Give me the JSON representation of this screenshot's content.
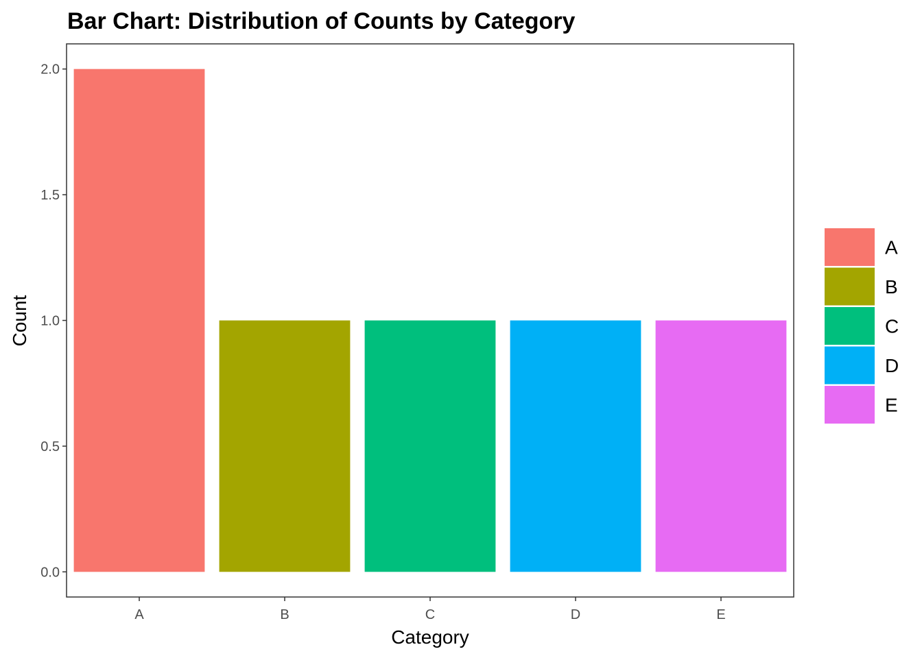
{
  "chart_data": {
    "type": "bar",
    "title": "Bar Chart: Distribution of Counts by Category",
    "xlabel": "Category",
    "ylabel": "Count",
    "categories": [
      "A",
      "B",
      "C",
      "D",
      "E"
    ],
    "values": [
      2,
      1,
      1,
      1,
      1
    ],
    "colors": [
      "#F8766D",
      "#A3A500",
      "#00BF7D",
      "#00B0F6",
      "#E76BF3"
    ],
    "ylim": [
      -0.1,
      2.1
    ],
    "yticks": [
      0.0,
      0.5,
      1.0,
      1.5,
      2.0
    ],
    "ytick_labels": [
      "0.0",
      "0.5",
      "1.0",
      "1.5",
      "2.0"
    ],
    "grid": false,
    "legend": {
      "position": "right",
      "entries": [
        "A",
        "B",
        "C",
        "D",
        "E"
      ]
    }
  }
}
